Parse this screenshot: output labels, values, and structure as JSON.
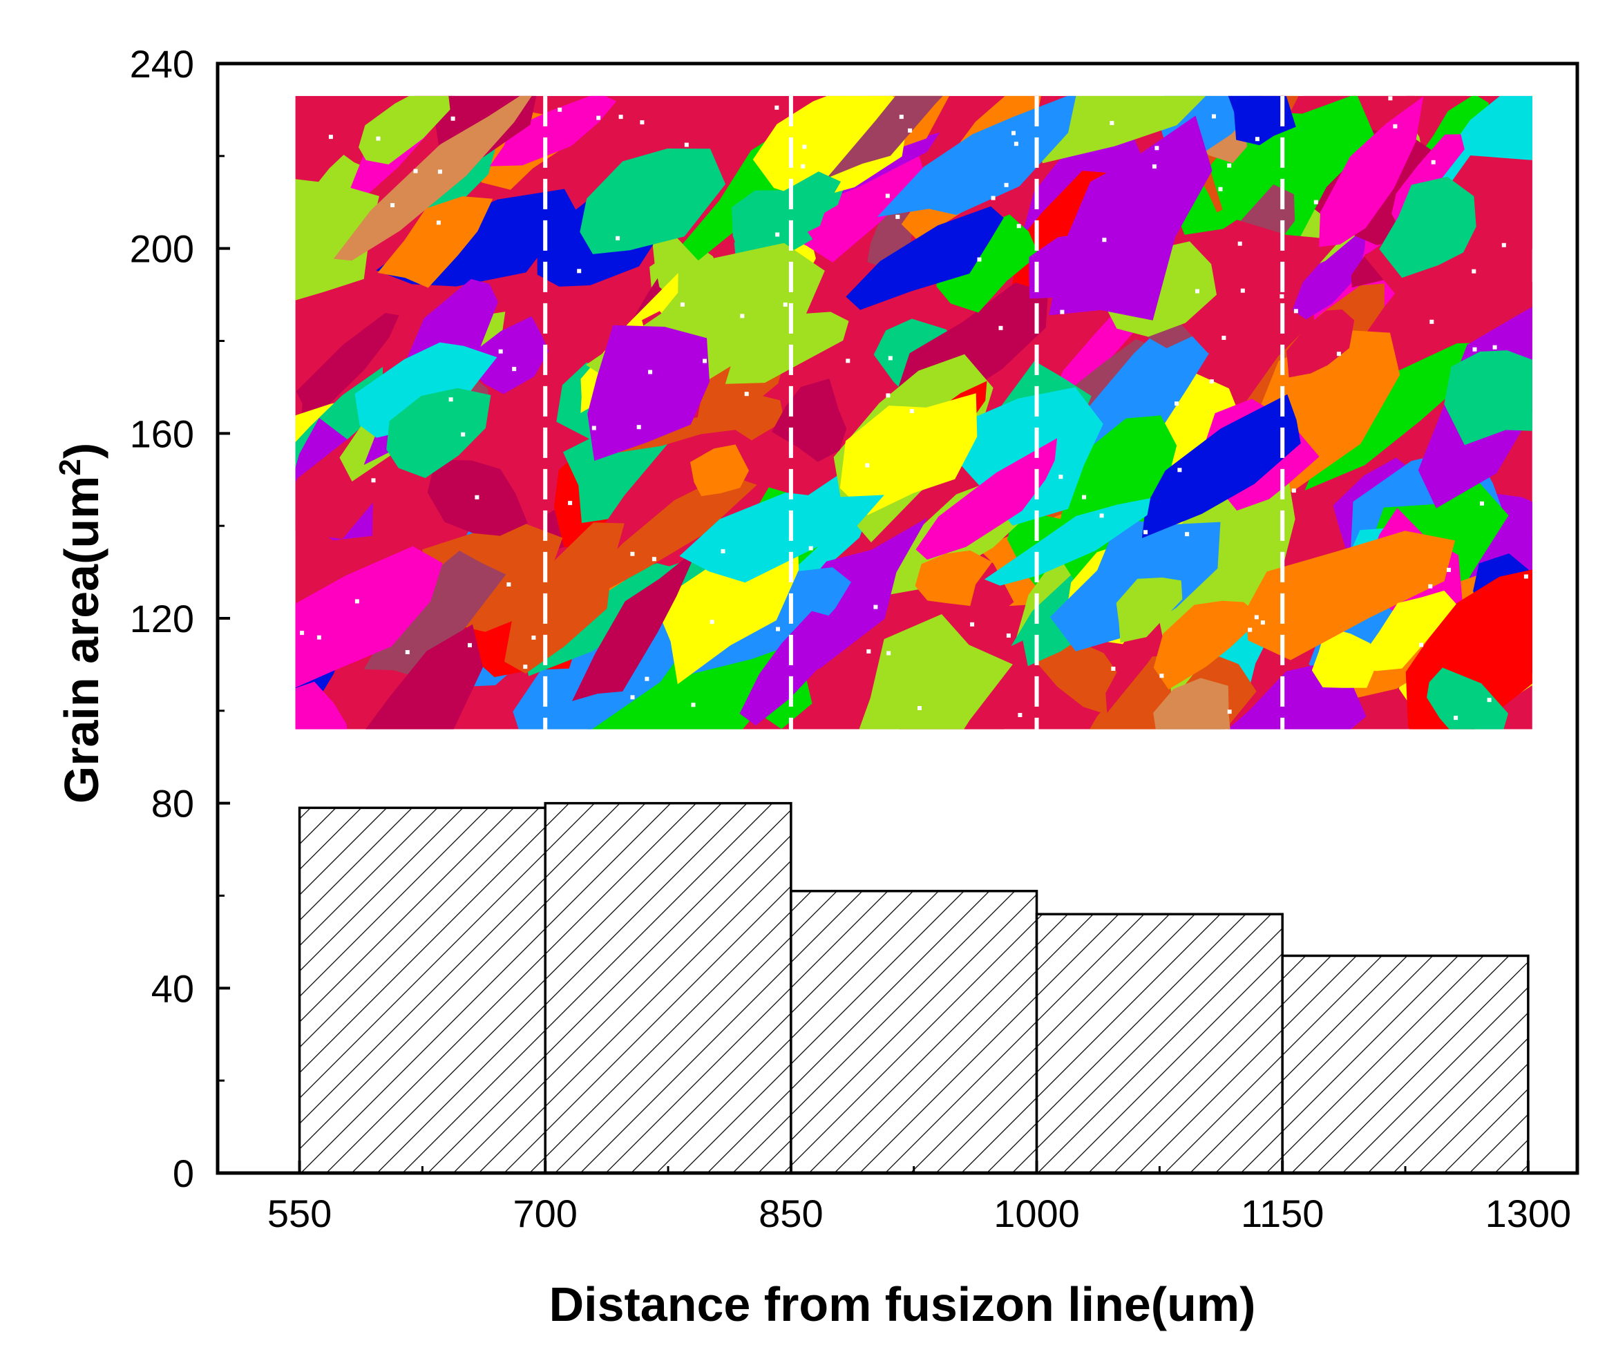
{
  "chart_data": {
    "type": "bar",
    "xlabel": "Distance from fusizon line(um)",
    "ylabel": {
      "main": "Grain area(um",
      "superscript": "2",
      "close": ")"
    },
    "x_ticks": [
      "550",
      "700",
      "850",
      "1000",
      "1150",
      "1300"
    ],
    "y_ticks": [
      "0",
      "40",
      "80",
      "120",
      "160",
      "200",
      "240"
    ],
    "xlim": [
      500,
      1330
    ],
    "ylim": [
      0,
      240
    ],
    "bins": [
      {
        "x_start": 550,
        "x_end": 700,
        "value": 79
      },
      {
        "x_start": 700,
        "x_end": 850,
        "value": 80
      },
      {
        "x_start": 850,
        "x_end": 1000,
        "value": 61
      },
      {
        "x_start": 1000,
        "x_end": 1150,
        "value": 56
      },
      {
        "x_start": 1150,
        "x_end": 1300,
        "value": 47
      }
    ],
    "bar_fill": "diagonal-hatch",
    "bar_edge_color": "#000000",
    "grid": false,
    "inset": {
      "kind": "EBSD grain orientation map",
      "dashed_dividers_at_x": [
        700,
        850,
        1000,
        1150
      ],
      "divider_color": "#ffffff",
      "palette": [
        "#E0104A",
        "#B000E0",
        "#00E000",
        "#FF8000",
        "#FF00C0",
        "#0010E0",
        "#00D080",
        "#D88A50",
        "#FFFF00",
        "#00E0E0",
        "#FF0000",
        "#E05010",
        "#A04060",
        "#1E90FF",
        "#C00050",
        "#A0E020"
      ]
    }
  }
}
